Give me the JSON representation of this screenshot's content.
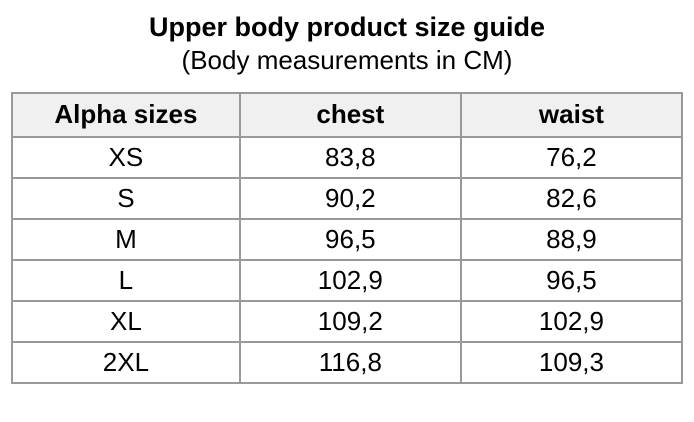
{
  "title": "Upper body product size guide",
  "subtitle": "(Body measurements in CM)",
  "colors": {
    "header_background": "#f0f0f0",
    "table_border": "#999999",
    "text": "#000000",
    "page_background": "#ffffff"
  },
  "table": {
    "headers": [
      "Alpha sizes",
      "chest",
      "waist"
    ],
    "rows": [
      {
        "size": "XS",
        "chest": "83,8",
        "waist": "76,2"
      },
      {
        "size": "S",
        "chest": "90,2",
        "waist": "82,6"
      },
      {
        "size": "M",
        "chest": "96,5",
        "waist": "88,9"
      },
      {
        "size": "L",
        "chest": "102,9",
        "waist": "96,5"
      },
      {
        "size": "XL",
        "chest": "109,2",
        "waist": "102,9"
      },
      {
        "size": "2XL",
        "chest": "116,8",
        "waist": "109,3"
      }
    ]
  }
}
